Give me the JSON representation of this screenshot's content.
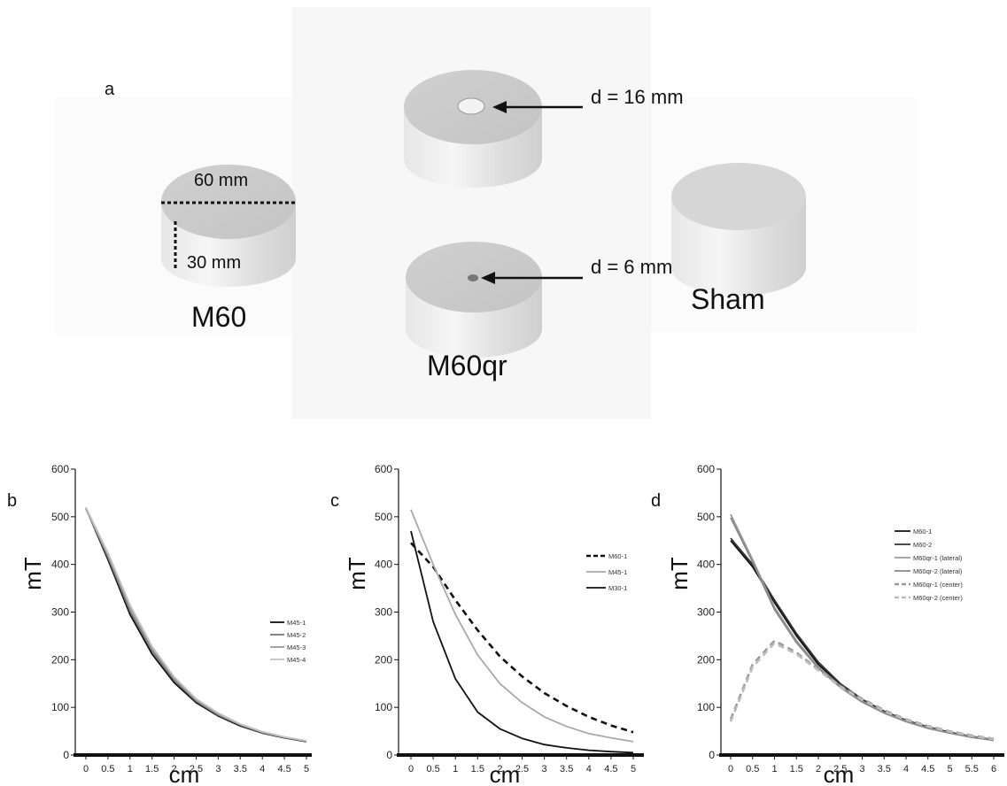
{
  "panel_a": {
    "label": "a",
    "magnets": {
      "m60": {
        "name": "M60",
        "diameter": "60 mm",
        "height": "30 mm"
      },
      "m60_large_hole": {
        "hole": "d = 16 mm"
      },
      "m60qr": {
        "name": "M60qr",
        "hole": "d = 6 mm"
      },
      "sham": {
        "name": "Sham"
      }
    }
  },
  "chart_data": [
    {
      "panel": "b",
      "type": "line",
      "xlabel": "cm",
      "ylabel": "mT",
      "ylim": [
        0,
        600
      ],
      "yticks": [
        "0",
        "100",
        "200",
        "300",
        "400",
        "500",
        "600"
      ],
      "xlim": [
        0,
        5
      ],
      "xticks": [
        "0",
        "0.5",
        "1",
        "1.5",
        "2",
        "2.5",
        "3",
        "3.5",
        "4",
        "4.5",
        "5"
      ],
      "legend_placement": "right",
      "x": [
        0,
        0.5,
        1,
        1.5,
        2,
        2.5,
        3,
        3.5,
        4,
        4.5,
        5
      ],
      "series": [
        {
          "name": "M45-1",
          "color": "#111111",
          "dash": false,
          "values": [
            518,
            410,
            295,
            212,
            152,
            110,
            82,
            61,
            46,
            36,
            28
          ]
        },
        {
          "name": "M45-2",
          "color": "#777777",
          "dash": false,
          "values": [
            518,
            415,
            302,
            218,
            157,
            113,
            84,
            63,
            47,
            37,
            29
          ]
        },
        {
          "name": "M45-3",
          "color": "#9a9a9a",
          "dash": false,
          "values": [
            516,
            420,
            310,
            224,
            161,
            116,
            86,
            64,
            48,
            37,
            29
          ]
        },
        {
          "name": "M45-4",
          "color": "#c2c2c2",
          "dash": false,
          "values": [
            520,
            424,
            315,
            228,
            164,
            118,
            88,
            65,
            49,
            38,
            30
          ]
        }
      ]
    },
    {
      "panel": "c",
      "type": "line",
      "xlabel": "cm",
      "ylabel": "mT",
      "ylim": [
        0,
        600
      ],
      "yticks": [
        "0",
        "100",
        "200",
        "300",
        "400",
        "500",
        "600"
      ],
      "xlim": [
        0,
        5
      ],
      "xticks": [
        "0",
        "0.5",
        "1",
        "1.5",
        "2",
        "2.5",
        "3",
        "3.5",
        "4",
        "4.5",
        "5"
      ],
      "legend_placement": "right",
      "x": [
        0,
        0.5,
        1,
        1.5,
        2,
        2.5,
        3,
        3.5,
        4,
        4.5,
        5
      ],
      "series": [
        {
          "name": "M60-1",
          "color": "#111111",
          "dash": true,
          "values": [
            445,
            395,
            325,
            262,
            207,
            165,
            130,
            103,
            80,
            62,
            48
          ]
        },
        {
          "name": "M45-1",
          "color": "#a8a8a8",
          "dash": false,
          "values": [
            515,
            400,
            295,
            210,
            150,
            110,
            80,
            60,
            45,
            36,
            28
          ]
        },
        {
          "name": "M30-1",
          "color": "#111111",
          "dash": false,
          "values": [
            470,
            280,
            160,
            90,
            55,
            35,
            22,
            15,
            10,
            7,
            5
          ]
        }
      ]
    },
    {
      "panel": "d",
      "type": "line",
      "xlabel": "cm",
      "ylabel": "mT",
      "ylim": [
        0,
        600
      ],
      "yticks": [
        "0",
        "100",
        "200",
        "300",
        "400",
        "500",
        "600"
      ],
      "xlim": [
        0,
        6
      ],
      "xticks": [
        "0",
        "0.5",
        "1",
        "1.5",
        "2",
        "2.5",
        "3",
        "3.5",
        "4",
        "4.5",
        "5",
        "5.5",
        "6"
      ],
      "legend_placement": "right",
      "x": [
        0,
        0.5,
        1,
        1.5,
        2,
        2.5,
        3,
        3.5,
        4,
        4.5,
        5,
        5.5,
        6
      ],
      "series": [
        {
          "name": "M60-1",
          "color": "#111111",
          "dash": false,
          "values": [
            450,
            395,
            320,
            250,
            190,
            148,
            115,
            90,
            72,
            58,
            47,
            38,
            31
          ]
        },
        {
          "name": "M60-2",
          "color": "#333333",
          "dash": false,
          "values": [
            455,
            400,
            325,
            255,
            195,
            150,
            117,
            92,
            73,
            59,
            48,
            39,
            32
          ]
        },
        {
          "name": "M60qr-1 (lateral)",
          "color": "#999999",
          "dash": false,
          "values": [
            505,
            410,
            310,
            240,
            185,
            145,
            113,
            89,
            71,
            57,
            46,
            38,
            31
          ]
        },
        {
          "name": "M60qr-2 (lateral)",
          "color": "#888888",
          "dash": false,
          "values": [
            498,
            405,
            305,
            236,
            182,
            142,
            111,
            88,
            70,
            56,
            46,
            37,
            31
          ]
        },
        {
          "name": "M60qr-1 (center)",
          "color": "#999999",
          "dash": true,
          "values": [
            75,
            190,
            240,
            215,
            180,
            145,
            118,
            94,
            75,
            61,
            50,
            41,
            34
          ]
        },
        {
          "name": "M60qr-2 (center)",
          "color": "#bbbbbb",
          "dash": true,
          "values": [
            70,
            185,
            235,
            212,
            178,
            143,
            116,
            92,
            74,
            60,
            49,
            40,
            33
          ]
        }
      ]
    }
  ]
}
